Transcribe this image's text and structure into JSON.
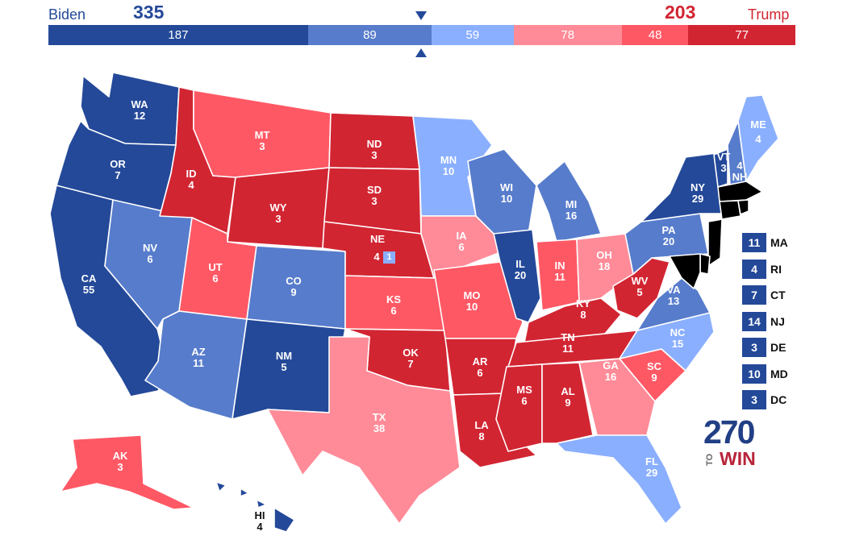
{
  "header": {
    "biden": {
      "name": "Biden",
      "votes": "335"
    },
    "trump": {
      "name": "Trump",
      "votes": "203"
    }
  },
  "bar": {
    "total": 538,
    "segments": [
      {
        "label": "187",
        "value": 187,
        "color": "#244999"
      },
      {
        "label": "89",
        "value": 89,
        "color": "#577ccc"
      },
      {
        "label": "59",
        "value": 59,
        "color": "#8aafff"
      },
      {
        "label": "78",
        "value": 78,
        "color": "#ff8b98"
      },
      {
        "label": "48",
        "value": 48,
        "color": "#ff5865"
      },
      {
        "label": "77",
        "value": 77,
        "color": "#d22532"
      }
    ]
  },
  "colors": {
    "safe_dem": "#244999",
    "likely_dem": "#577ccc",
    "lean_dem": "#8aafff",
    "lean_rep": "#ff8b98",
    "likely_rep": "#ff5865",
    "safe_rep": "#d22532"
  },
  "states": {
    "WA": {
      "abbr": "WA",
      "votes": "12",
      "rating": "safe_dem"
    },
    "OR": {
      "abbr": "OR",
      "votes": "7",
      "rating": "safe_dem"
    },
    "CA": {
      "abbr": "CA",
      "votes": "55",
      "rating": "safe_dem"
    },
    "NV": {
      "abbr": "NV",
      "votes": "6",
      "rating": "likely_dem"
    },
    "ID": {
      "abbr": "ID",
      "votes": "4",
      "rating": "safe_rep"
    },
    "MT": {
      "abbr": "MT",
      "votes": "3",
      "rating": "likely_rep"
    },
    "WY": {
      "abbr": "WY",
      "votes": "3",
      "rating": "safe_rep"
    },
    "UT": {
      "abbr": "UT",
      "votes": "6",
      "rating": "likely_rep"
    },
    "AZ": {
      "abbr": "AZ",
      "votes": "11",
      "rating": "likely_dem"
    },
    "CO": {
      "abbr": "CO",
      "votes": "9",
      "rating": "likely_dem"
    },
    "NM": {
      "abbr": "NM",
      "votes": "5",
      "rating": "safe_dem"
    },
    "ND": {
      "abbr": "ND",
      "votes": "3",
      "rating": "safe_rep"
    },
    "SD": {
      "abbr": "SD",
      "votes": "3",
      "rating": "safe_rep"
    },
    "NE": {
      "abbr": "NE",
      "votes": "4",
      "rating": "safe_rep"
    },
    "KS": {
      "abbr": "KS",
      "votes": "6",
      "rating": "likely_rep"
    },
    "OK": {
      "abbr": "OK",
      "votes": "7",
      "rating": "safe_rep"
    },
    "TX": {
      "abbr": "TX",
      "votes": "38",
      "rating": "lean_rep"
    },
    "MN": {
      "abbr": "MN",
      "votes": "10",
      "rating": "lean_dem"
    },
    "IA": {
      "abbr": "IA",
      "votes": "6",
      "rating": "lean_rep"
    },
    "MO": {
      "abbr": "MO",
      "votes": "10",
      "rating": "likely_rep"
    },
    "AR": {
      "abbr": "AR",
      "votes": "6",
      "rating": "safe_rep"
    },
    "LA": {
      "abbr": "LA",
      "votes": "8",
      "rating": "safe_rep"
    },
    "WI": {
      "abbr": "WI",
      "votes": "10",
      "rating": "likely_dem"
    },
    "IL": {
      "abbr": "IL",
      "votes": "20",
      "rating": "safe_dem"
    },
    "MI": {
      "abbr": "MI",
      "votes": "16",
      "rating": "likely_dem"
    },
    "IN": {
      "abbr": "IN",
      "votes": "11",
      "rating": "likely_rep"
    },
    "OH": {
      "abbr": "OH",
      "votes": "18",
      "rating": "lean_rep"
    },
    "KY": {
      "abbr": "KY",
      "votes": "8",
      "rating": "safe_rep"
    },
    "TN": {
      "abbr": "TN",
      "votes": "11",
      "rating": "safe_rep"
    },
    "MS": {
      "abbr": "MS",
      "votes": "6",
      "rating": "safe_rep"
    },
    "AL": {
      "abbr": "AL",
      "votes": "9",
      "rating": "safe_rep"
    },
    "GA": {
      "abbr": "GA",
      "votes": "16",
      "rating": "lean_rep"
    },
    "FL": {
      "abbr": "FL",
      "votes": "29",
      "rating": "lean_dem"
    },
    "SC": {
      "abbr": "SC",
      "votes": "9",
      "rating": "likely_rep"
    },
    "NC": {
      "abbr": "NC",
      "votes": "15",
      "rating": "lean_dem"
    },
    "VA": {
      "abbr": "VA",
      "votes": "13",
      "rating": "likely_dem"
    },
    "WV": {
      "abbr": "WV",
      "votes": "5",
      "rating": "safe_rep"
    },
    "PA": {
      "abbr": "PA",
      "votes": "20",
      "rating": "likely_dem"
    },
    "NY": {
      "abbr": "NY",
      "votes": "29",
      "rating": "safe_dem"
    },
    "VT": {
      "abbr": "VT",
      "votes": "3",
      "rating": "safe_dem"
    },
    "NH": {
      "abbr": "NH",
      "votes": "4",
      "rating": "likely_dem"
    },
    "ME": {
      "abbr": "ME",
      "votes": "4",
      "rating": "lean_dem"
    },
    "AK": {
      "abbr": "AK",
      "votes": "3",
      "rating": "likely_rep"
    },
    "HI": {
      "abbr": "HI",
      "votes": "4",
      "rating": "safe_dem"
    }
  },
  "ne_district": {
    "votes": "1",
    "rating": "lean_dem"
  },
  "small_states": [
    {
      "abbr": "MA",
      "votes": "11"
    },
    {
      "abbr": "RI",
      "votes": "4"
    },
    {
      "abbr": "CT",
      "votes": "7"
    },
    {
      "abbr": "NJ",
      "votes": "14"
    },
    {
      "abbr": "DE",
      "votes": "3"
    },
    {
      "abbr": "MD",
      "votes": "10"
    },
    {
      "abbr": "DC",
      "votes": "3"
    }
  ],
  "logo": {
    "number": "270",
    "to": "TO",
    "win": "WIN"
  }
}
